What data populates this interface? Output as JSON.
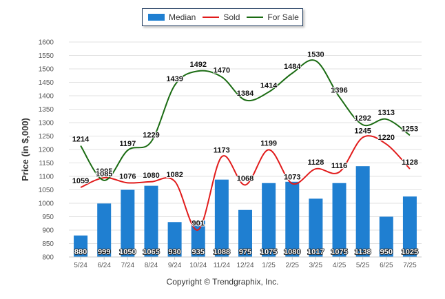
{
  "chart_data": {
    "type": "bar",
    "categories": [
      "5/24",
      "6/24",
      "7/24",
      "8/24",
      "9/24",
      "10/24",
      "11/24",
      "12/24",
      "1/25",
      "2/25",
      "3/25",
      "4/25",
      "5/25",
      "6/25",
      "7/25"
    ],
    "series": [
      {
        "name": "Median",
        "type": "bar",
        "color": "#1f7fd1",
        "values": [
          880,
          999,
          1050,
          1065,
          930,
          935,
          1088,
          975,
          1075,
          1080,
          1017,
          1075,
          1138,
          950,
          1025
        ]
      },
      {
        "name": "Sold",
        "type": "line",
        "color": "#e11b1b",
        "values": [
          1059,
          1095,
          1076,
          1080,
          1082,
          901,
          1173,
          1068,
          1199,
          1073,
          1128,
          1116,
          1245,
          1220,
          1128
        ]
      },
      {
        "name": "For Sale",
        "type": "line",
        "color": "#1a6b12",
        "values": [
          1214,
          1085,
          1197,
          1229,
          1439,
          1492,
          1470,
          1384,
          1414,
          1484,
          1530,
          1396,
          1292,
          1313,
          1253
        ]
      }
    ],
    "ylabel": "Price (in $,000)",
    "xlabel": "",
    "ylim": [
      800,
      1600
    ],
    "yticks": [
      800,
      850,
      900,
      950,
      1000,
      1050,
      1100,
      1150,
      1200,
      1250,
      1300,
      1350,
      1400,
      1450,
      1500,
      1550,
      1600
    ],
    "grid": true,
    "legend_position": "top-center"
  },
  "footer": {
    "copyright": "Copyright © Trendgraphix, Inc."
  }
}
